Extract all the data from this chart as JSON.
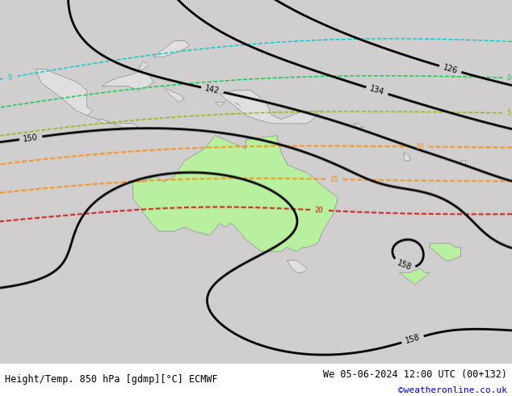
{
  "title_left": "Height/Temp. 850 hPa [gdmp][°C] ECMWF",
  "title_right": "We 05-06-2024 12:00 UTC (00+132)",
  "watermark": "©weatheronline.co.uk",
  "bg_color": "#d0cece",
  "ocean_color": "#d0cece",
  "land_color": "#e0dede",
  "aus_fill": "#b8f0a0",
  "nz_fill": "#b8f0a0",
  "fig_width": 6.34,
  "fig_height": 4.9,
  "dpi": 100,
  "font_color_left": "#000000",
  "font_color_right": "#000000",
  "font_color_watermark": "#0000cc",
  "font_size_title": 8.5,
  "font_size_watermark": 8,
  "lon_min": 88,
  "lon_max": 188,
  "lat_min": -66,
  "lat_max": 22
}
